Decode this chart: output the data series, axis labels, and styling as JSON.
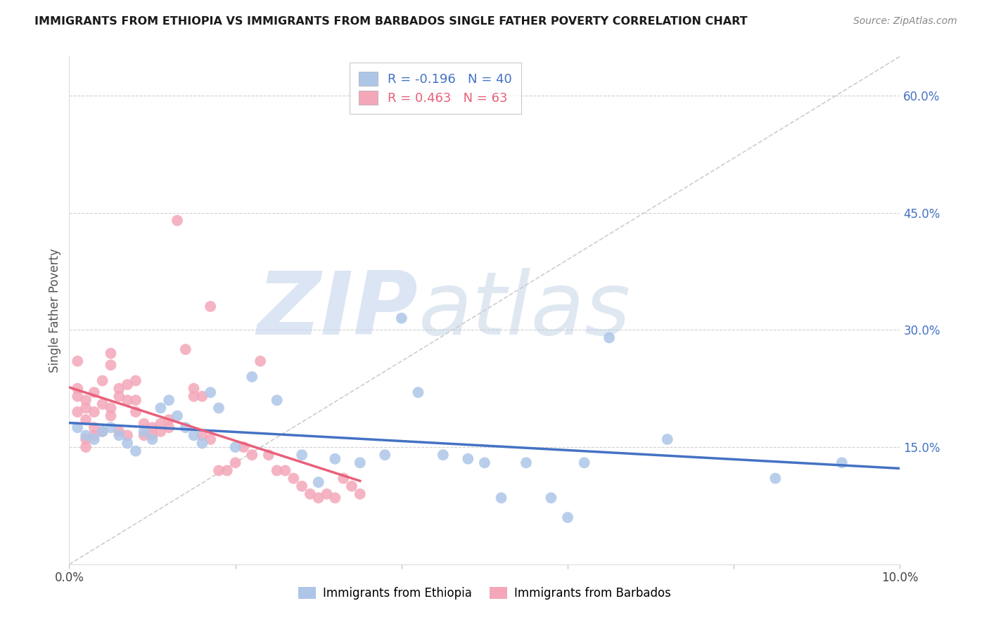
{
  "title": "IMMIGRANTS FROM ETHIOPIA VS IMMIGRANTS FROM BARBADOS SINGLE FATHER POVERTY CORRELATION CHART",
  "source": "Source: ZipAtlas.com",
  "ylabel": "Single Father Poverty",
  "right_ytick_labels": [
    "15.0%",
    "30.0%",
    "45.0%",
    "60.0%"
  ],
  "right_ytick_values": [
    0.15,
    0.3,
    0.45,
    0.6
  ],
  "xlim": [
    0,
    0.1
  ],
  "ylim": [
    0,
    0.65
  ],
  "xtick_vals": [
    0.0,
    0.1
  ],
  "xtick_labels": [
    "0.0%",
    "10.0%"
  ],
  "ethiopia_color": "#adc6e8",
  "barbados_color": "#f4a7b9",
  "ethiopia_line_color": "#4472c4",
  "barbados_line_color": "#e8607a",
  "ethiopia_R": -0.196,
  "ethiopia_N": 40,
  "barbados_R": 0.463,
  "barbados_N": 63,
  "watermark_zip": "ZIP",
  "watermark_atlas": "atlas",
  "watermark_color_zip": "#c5d8f0",
  "watermark_color_atlas": "#b8cce8",
  "grid_color": "#cccccc",
  "background_color": "#ffffff",
  "ethiopia_scatter_x": [
    0.001,
    0.002,
    0.003,
    0.004,
    0.005,
    0.006,
    0.007,
    0.008,
    0.009,
    0.01,
    0.011,
    0.012,
    0.013,
    0.014,
    0.015,
    0.016,
    0.017,
    0.018,
    0.02,
    0.022,
    0.025,
    0.028,
    0.03,
    0.032,
    0.035,
    0.038,
    0.04,
    0.042,
    0.045,
    0.048,
    0.05,
    0.052,
    0.055,
    0.058,
    0.06,
    0.062,
    0.065,
    0.072,
    0.085,
    0.093
  ],
  "ethiopia_scatter_y": [
    0.175,
    0.165,
    0.16,
    0.17,
    0.175,
    0.165,
    0.155,
    0.145,
    0.17,
    0.16,
    0.2,
    0.21,
    0.19,
    0.175,
    0.165,
    0.155,
    0.22,
    0.2,
    0.15,
    0.24,
    0.21,
    0.14,
    0.105,
    0.135,
    0.13,
    0.14,
    0.315,
    0.22,
    0.14,
    0.135,
    0.13,
    0.085,
    0.13,
    0.085,
    0.06,
    0.13,
    0.29,
    0.16,
    0.11,
    0.13
  ],
  "barbados_scatter_x": [
    0.001,
    0.001,
    0.001,
    0.001,
    0.002,
    0.002,
    0.002,
    0.002,
    0.002,
    0.003,
    0.003,
    0.003,
    0.003,
    0.004,
    0.004,
    0.004,
    0.005,
    0.005,
    0.005,
    0.005,
    0.006,
    0.006,
    0.006,
    0.007,
    0.007,
    0.007,
    0.008,
    0.008,
    0.008,
    0.009,
    0.009,
    0.01,
    0.01,
    0.011,
    0.011,
    0.012,
    0.012,
    0.013,
    0.014,
    0.015,
    0.015,
    0.016,
    0.016,
    0.017,
    0.017,
    0.018,
    0.019,
    0.02,
    0.021,
    0.022,
    0.023,
    0.024,
    0.025,
    0.026,
    0.027,
    0.028,
    0.029,
    0.03,
    0.031,
    0.032,
    0.033,
    0.034,
    0.035
  ],
  "barbados_scatter_y": [
    0.26,
    0.225,
    0.215,
    0.195,
    0.21,
    0.2,
    0.185,
    0.16,
    0.15,
    0.22,
    0.195,
    0.175,
    0.165,
    0.235,
    0.205,
    0.17,
    0.27,
    0.255,
    0.2,
    0.19,
    0.225,
    0.215,
    0.17,
    0.23,
    0.21,
    0.165,
    0.235,
    0.21,
    0.195,
    0.18,
    0.165,
    0.175,
    0.165,
    0.18,
    0.17,
    0.185,
    0.175,
    0.44,
    0.275,
    0.225,
    0.215,
    0.215,
    0.165,
    0.33,
    0.16,
    0.12,
    0.12,
    0.13,
    0.15,
    0.14,
    0.26,
    0.14,
    0.12,
    0.12,
    0.11,
    0.1,
    0.09,
    0.085,
    0.09,
    0.085,
    0.11,
    0.1,
    0.09
  ]
}
